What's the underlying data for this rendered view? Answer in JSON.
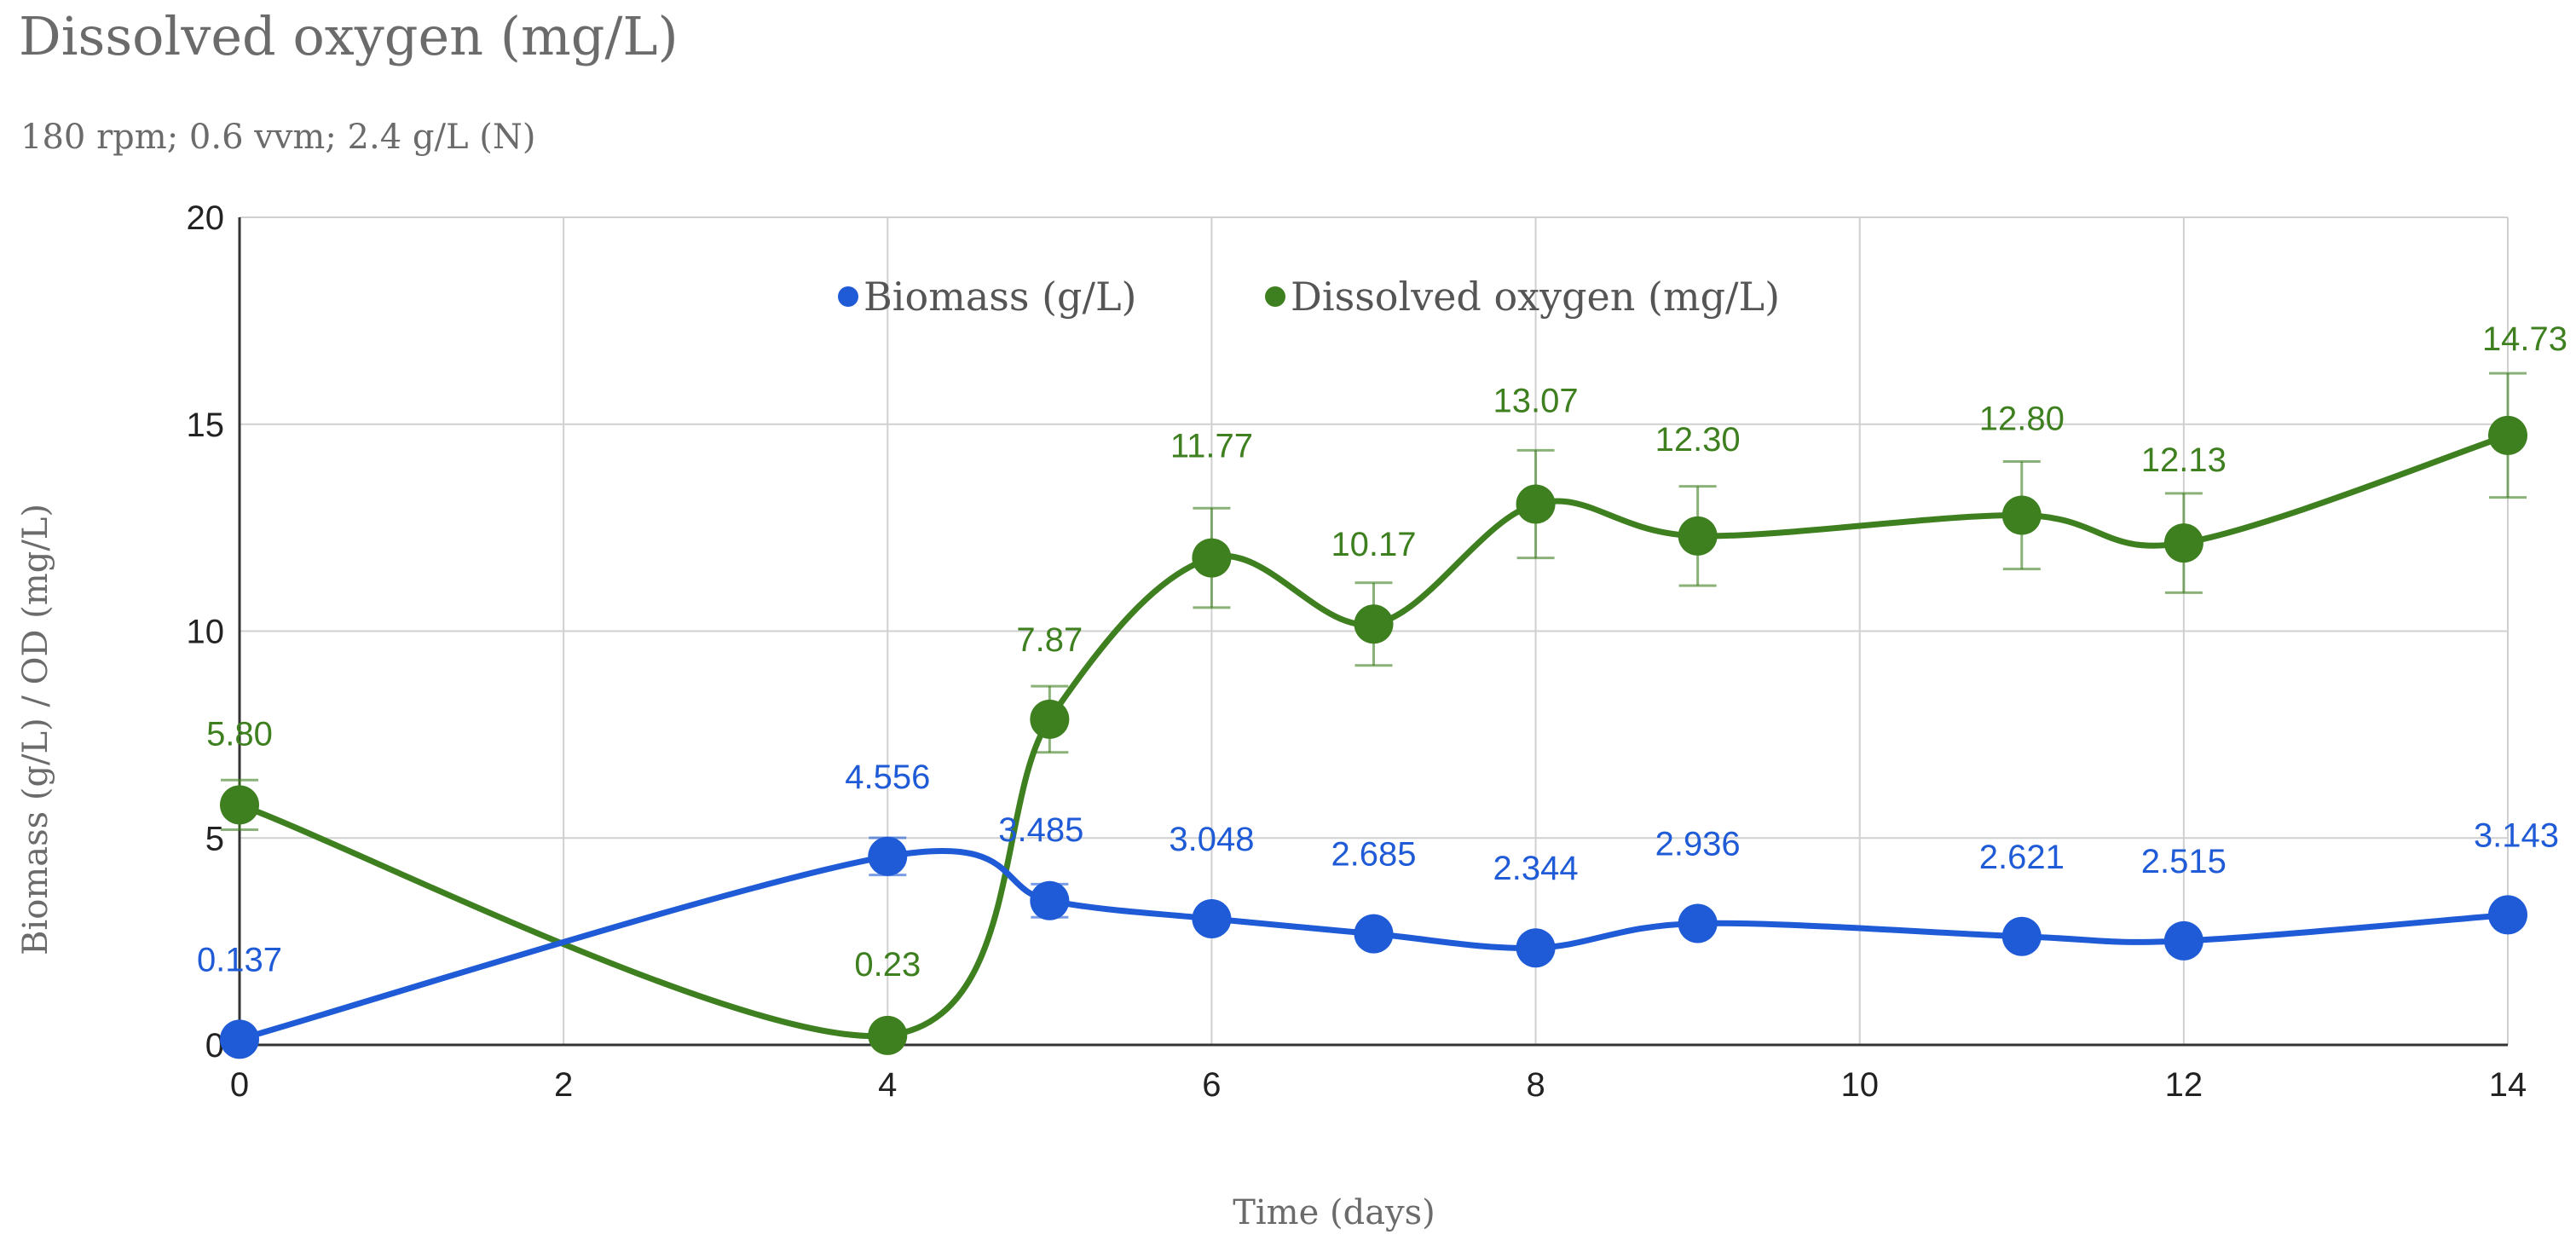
{
  "chart_data": {
    "type": "line",
    "title": "Dissolved oxygen (mg/L)",
    "subtitle": "180 rpm; 0.6 vvm; 2.4 g/L (N)",
    "xlabel": "Time (days)",
    "ylabel": "Biomass (g/L) / OD (mg/L)",
    "xlim": [
      0,
      14
    ],
    "ylim": [
      0,
      20
    ],
    "x_ticks": [
      0,
      2,
      4,
      6,
      8,
      10,
      12,
      14
    ],
    "y_ticks": [
      0,
      5,
      10,
      15,
      20
    ],
    "grid": true,
    "legend_position": "top-center",
    "series": [
      {
        "name": "Biomass (g/L)",
        "color": "#1f5bd6",
        "x": [
          0,
          4,
          5,
          6,
          7,
          8,
          9,
          11,
          12,
          14
        ],
        "values": [
          0.137,
          4.556,
          3.485,
          3.048,
          2.685,
          2.344,
          2.936,
          2.621,
          2.515,
          3.143
        ],
        "labels": [
          "0.137",
          "4.556",
          "3.485",
          "3.048",
          "2.685",
          "2.344",
          "2.936",
          "2.621",
          "2.515",
          "3.143"
        ],
        "error": [
          0.05,
          0.45,
          0.4,
          0.0,
          0.0,
          0.0,
          0.0,
          0.0,
          0.0,
          0.0
        ]
      },
      {
        "name": "Dissolved oxygen (mg/L)",
        "color": "#3e7f1f",
        "x": [
          0,
          4,
          5,
          6,
          7,
          8,
          9,
          11,
          12,
          14
        ],
        "values": [
          5.8,
          0.23,
          7.87,
          11.77,
          10.17,
          13.07,
          12.3,
          12.8,
          12.13,
          14.73
        ],
        "labels": [
          "5.80",
          "0.23",
          "7.87",
          "11.77",
          "10.17",
          "13.07",
          "12.30",
          "12.80",
          "12.13",
          "14.73"
        ],
        "error": [
          0.6,
          0.0,
          0.8,
          1.2,
          1.0,
          1.3,
          1.2,
          1.3,
          1.2,
          1.5
        ]
      }
    ]
  }
}
